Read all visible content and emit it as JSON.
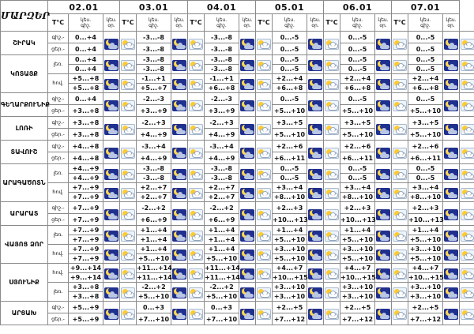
{
  "table": {
    "corner_label": "ՄԱՐԶԵՐ",
    "dates": [
      "02.01",
      "03.01",
      "04.01",
      "05.01",
      "06.01",
      "07.01"
    ],
    "subheader": {
      "temp_label": "T°C",
      "icon_cols": [
        {
          "line1": "կես.",
          "line2": "գիշ."
        },
        {
          "line1": "կես.",
          "line2": "օր."
        }
      ]
    },
    "row_labels": {
      "night": "գիշ.-",
      "day": "ցեր.-"
    },
    "icons": {
      "night": "moon-cloud-icon",
      "day": "sun-cloud-icon"
    },
    "regions": [
      {
        "name": "ՇԻՐԱԿ",
        "zones": [
          {
            "label": null,
            "night": [
              "0...+4",
              "-3...-8",
              "-3...-8",
              "0...-5",
              "0...-5",
              "0...-5"
            ],
            "day": [
              "0...+4",
              "-3...-8",
              "-3...-8",
              "0...-5",
              "0...-5",
              "0...-5"
            ]
          }
        ]
      },
      {
        "name": "ԿՈՏԱՅՔ",
        "zones": [
          {
            "label": "լեռ.",
            "night": [
              "0...+4",
              "-3...-8",
              "-3...-8",
              "0...-5",
              "0...-5",
              "0...-5"
            ],
            "day": [
              "0...+4",
              "-3...-8",
              "-3...-8",
              "0...-5",
              "0...-5",
              "0...-5"
            ]
          },
          {
            "label": "հով.",
            "night": [
              "+5...+8",
              "-1...+1",
              "-1...+1",
              "+2...+4",
              "+2...+4",
              "+2...+4"
            ],
            "day": [
              "+5...+8",
              "+5...+7",
              "+6...+8",
              "+6...+8",
              "+6...+8",
              "+6...+8"
            ]
          }
        ]
      },
      {
        "name": "ԳԵՂԱՐՔՈՒՆԻՔ",
        "zones": [
          {
            "label": null,
            "night": [
              "0...+4",
              "-2...-3",
              "-2...-3",
              "0...-5",
              "0...-5",
              "0...-5"
            ],
            "day": [
              "+3...+8",
              "+3...+9",
              "+3...+9",
              "+5...+10",
              "+5...+10",
              "+5...+10"
            ]
          }
        ]
      },
      {
        "name": "ԼՈՌԻ",
        "zones": [
          {
            "label": null,
            "night": [
              "+3...+8",
              "-2...+3",
              "-2...+3",
              "+3...+5",
              "+3...+5",
              "+3...+5"
            ],
            "day": [
              "+3...+8",
              "+4...+9",
              "+4...+9",
              "+5...+10",
              "+5...+10",
              "+5...+10"
            ]
          }
        ]
      },
      {
        "name": "ՏԱՎՈՒՇ",
        "zones": [
          {
            "label": null,
            "night": [
              "+4...+8",
              "-3...+4",
              "-3...+4",
              "+2...+6",
              "+2...+6",
              "+2...+6"
            ],
            "day": [
              "+4...+8",
              "+4...+9",
              "+4...+9",
              "+6...+11",
              "+6...+11",
              "+6...+11"
            ]
          }
        ]
      },
      {
        "name": "ԱՐԱԳԱԾՈՏՆ",
        "zones": [
          {
            "label": "լեռ.",
            "night": [
              "+4...+9",
              "-3...-8",
              "-3...-8",
              "0...-5",
              "0...-5",
              "0...-5"
            ],
            "day": [
              "+4...+9",
              "-3...-8",
              "-3...-8",
              "0...-5",
              "0...-5",
              "0...-5"
            ]
          },
          {
            "label": "հով.",
            "night": [
              "+7...+9",
              "+2...+7",
              "+2...+7",
              "+3...+4",
              "+3...+4",
              "+3...+4"
            ],
            "day": [
              "+7...+9",
              "+2...+7",
              "+2...+7",
              "+8...+10",
              "+8...+10",
              "+8...+10"
            ]
          }
        ]
      },
      {
        "name": "ԱՐԱՐԱՏ",
        "zones": [
          {
            "label": null,
            "night": [
              "+7...+9",
              "-2...+2",
              "-2...+2",
              "+2...+3",
              "+2...+3",
              "+2...+3"
            ],
            "day": [
              "+7...+9",
              "+6...+9",
              "+6...+9",
              "+10...+13",
              "+10...+13",
              "+10...+13"
            ]
          }
        ]
      },
      {
        "name": "ՎԱՅՈՑ ՁՈՐ",
        "zones": [
          {
            "label": "լեռ.",
            "night": [
              "+7...+9",
              "+1...+4",
              "+1...+4",
              "+1...+4",
              "+1...+4",
              "+1...+4"
            ],
            "day": [
              "+7...+9",
              "+1...+4",
              "+1...+4",
              "+5...+10",
              "+5...+10",
              "+5...+10"
            ]
          },
          {
            "label": "հով.",
            "night": [
              "+7...+9",
              "+1...+4",
              "+1...+4",
              "+3...+10",
              "+3...+10",
              "+3...+10"
            ],
            "day": [
              "+7...+9",
              "+5...+10",
              "+5...+10",
              "+5...+10",
              "+5...+10",
              "+5...+10"
            ]
          }
        ]
      },
      {
        "name": "ՍՅՈՒՆԻՔ",
        "zones": [
          {
            "label": "հով.",
            "night": [
              "+9...+14",
              "+11...+14",
              "+11...+14",
              "+4...+7",
              "+4...+7",
              "+4...+7"
            ],
            "day": [
              "+9...+14",
              "+11...+14",
              "+11...+14",
              "+10...+15",
              "+10...+15",
              "+10...+15"
            ]
          },
          {
            "label": "լեռ.",
            "night": [
              "+3...+8",
              "-2...+2",
              "-2...+2",
              "+3...+10",
              "+3...+10",
              "+3...+10"
            ],
            "day": [
              "+3...+8",
              "+5...+10",
              "+5...+10",
              "+3...+10",
              "+3...+10",
              "+3...+10"
            ]
          }
        ]
      },
      {
        "name": "ԱՐՑԱԽ",
        "zones": [
          {
            "label": null,
            "night": [
              "+5...+9",
              "0...+3",
              "0...+3",
              "+2...+5",
              "+2...+5",
              "+2...+5"
            ],
            "day": [
              "+5...+9",
              "+7...+10",
              "+7...+10",
              "+7...+12",
              "+7...+12",
              "+7...+12"
            ]
          }
        ]
      }
    ]
  }
}
